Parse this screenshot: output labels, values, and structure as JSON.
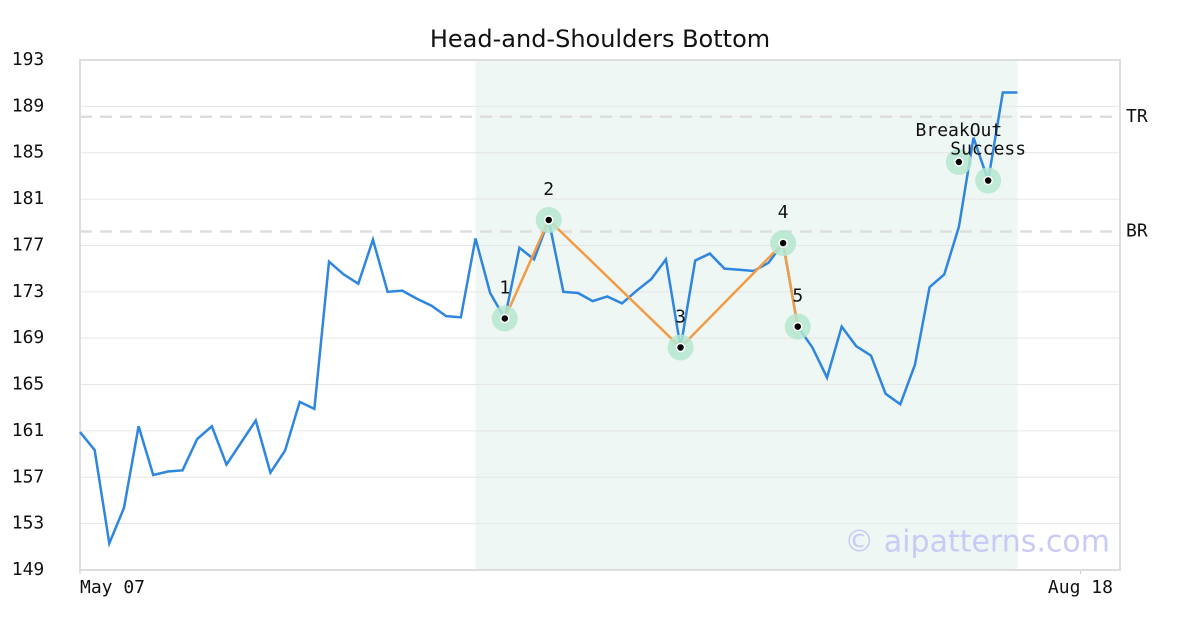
{
  "chart_data": {
    "type": "line",
    "title": "Head-and-Shoulders Bottom",
    "x": [
      0,
      1,
      2,
      3,
      4,
      5,
      6,
      7,
      8,
      9,
      10,
      11,
      12,
      13,
      14,
      15,
      16,
      17,
      18,
      19,
      20,
      21,
      22,
      23,
      24,
      25,
      26,
      27,
      28,
      29,
      30,
      31,
      32,
      33,
      34,
      35,
      36,
      37,
      38,
      39,
      40,
      41,
      42,
      43,
      44,
      45,
      46,
      47,
      48,
      49,
      50,
      51,
      52,
      53,
      54,
      55,
      56,
      57,
      58,
      59,
      60,
      61,
      62,
      63,
      64
    ],
    "series": [
      {
        "color": "#2e86de",
        "values": [
          160.9,
          159.35,
          151.3,
          154.35,
          161.4,
          157.2,
          157.5,
          157.6,
          160.3,
          161.4,
          158.1,
          160.0,
          161.9,
          157.4,
          159.3,
          163.5,
          162.9,
          175.6,
          174.5,
          173.7,
          177.5,
          173.0,
          173.1,
          172.4,
          171.8,
          170.9,
          170.8,
          177.6,
          172.9,
          170.7,
          176.8,
          175.8,
          179.2,
          173.0,
          172.9,
          172.2,
          172.6,
          172.0,
          173.1,
          174.1,
          175.8,
          168.2,
          175.7,
          176.3,
          175.0,
          174.9,
          174.8,
          175.5,
          177.2,
          170.0,
          168.2,
          165.6,
          170.0,
          168.3,
          167.5,
          164.2,
          163.3,
          166.7,
          173.4,
          174.5,
          178.6,
          186.3,
          182.6,
          190.2,
          190.2
        ]
      }
    ],
    "xlim": [
      0,
      71
    ],
    "xticks": [
      {
        "value": 0,
        "label": "May 07"
      },
      {
        "value": 68.3,
        "label": "Aug 18"
      }
    ],
    "ylim": [
      149,
      193
    ],
    "yticks": [
      149,
      153,
      157,
      161,
      165,
      169,
      173,
      177,
      181,
      185,
      189,
      193
    ],
    "grid": true,
    "shade": {
      "x": [
        27,
        64
      ],
      "color": "#eef7f3"
    },
    "pattern": {
      "color": "#f39c45",
      "points": [
        {
          "label": "1",
          "x": 29,
          "y": 170.7
        },
        {
          "label": "2",
          "x": 32,
          "y": 179.2
        },
        {
          "label": "3",
          "x": 41,
          "y": 168.2
        },
        {
          "label": "4",
          "x": 48,
          "y": 177.2
        },
        {
          "label": "5",
          "x": 49,
          "y": 170.0
        }
      ]
    },
    "signals": [
      {
        "label": "BreakOut",
        "x": 60,
        "y": 184.2
      },
      {
        "label": "Success",
        "x": 62,
        "y": 182.6
      }
    ],
    "hlines": [
      {
        "label": "TR",
        "value": 188.1
      },
      {
        "label": "BR",
        "value": 178.2
      }
    ],
    "watermark": "© aipatterns.com"
  }
}
